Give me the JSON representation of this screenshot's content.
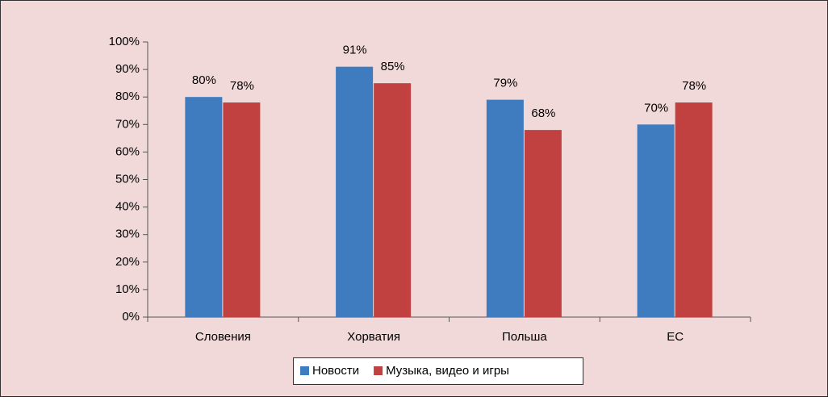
{
  "chart_data": {
    "type": "bar",
    "categories": [
      "Словения",
      "Хорватия",
      "Польша",
      "ЕС"
    ],
    "series": [
      {
        "name": "Новости",
        "color": "#3f7bbf",
        "values": [
          80,
          91,
          79,
          70
        ],
        "value_labels": [
          "80%",
          "91%",
          "79%",
          "70%"
        ]
      },
      {
        "name": "Музыка, видео и игры",
        "color": "#c0413f",
        "values": [
          78,
          85,
          68,
          78
        ],
        "value_labels": [
          "78%",
          "85%",
          "68%",
          "78%"
        ]
      }
    ],
    "ylim": [
      0,
      100
    ],
    "yticks": [
      {
        "value": 0,
        "label": "0%"
      },
      {
        "value": 10,
        "label": "10%"
      },
      {
        "value": 20,
        "label": "20%"
      },
      {
        "value": 30,
        "label": "30%"
      },
      {
        "value": 40,
        "label": "40%"
      },
      {
        "value": 50,
        "label": "50%"
      },
      {
        "value": 60,
        "label": "60%"
      },
      {
        "value": 70,
        "label": "70%"
      },
      {
        "value": 80,
        "label": "80%"
      },
      {
        "value": 90,
        "label": "90%"
      },
      {
        "value": 100,
        "label": "100%"
      }
    ],
    "legend": "bottom"
  }
}
